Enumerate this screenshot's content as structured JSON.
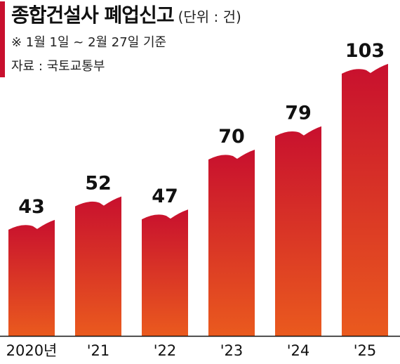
{
  "header": {
    "title": "종합건설사 폐업신고",
    "unit": "(단위 : 건)",
    "note": "※ 1월 1일 ~ 2월 27일 기준",
    "source": "자료 : 국토교통부"
  },
  "colors": {
    "accent": "#c8102e",
    "bar_top": "#c8102e",
    "bar_bottom": "#ea5a1e",
    "axis": "#111111"
  },
  "chart_data": {
    "type": "bar",
    "title": "종합건설사 폐업신고",
    "categories": [
      "2020년",
      "'21",
      "'22",
      "'23",
      "'24",
      "'25"
    ],
    "values": [
      43,
      52,
      47,
      70,
      79,
      103
    ],
    "ylim": [
      0,
      110
    ],
    "grid": false,
    "legend": "none"
  }
}
